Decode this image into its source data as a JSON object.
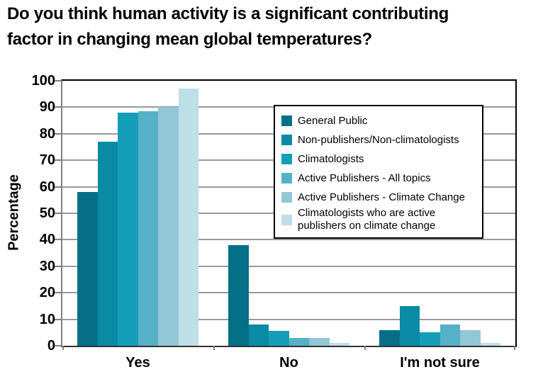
{
  "title": {
    "line1": "Do you think human activity is a significant contributing",
    "line2": "factor in changing mean global temperatures?"
  },
  "chart_data": {
    "type": "bar",
    "categories": [
      "Yes",
      "No",
      "I'm not sure"
    ],
    "series": [
      {
        "name": "General Public",
        "color": "#056F88",
        "values": [
          58,
          38,
          6
        ]
      },
      {
        "name": "Non-publishers/Non-climatologists",
        "color": "#0A8AA4",
        "values": [
          77,
          8,
          15
        ]
      },
      {
        "name": "Climatologists",
        "color": "#149EBA",
        "values": [
          88,
          5.5,
          5
        ]
      },
      {
        "name": "Active Publishers - All topics",
        "color": "#55B0C8",
        "values": [
          88.5,
          3,
          8
        ]
      },
      {
        "name": "Active Publishers - Climate Change",
        "color": "#92C7D8",
        "values": [
          90,
          3,
          6
        ]
      },
      {
        "name": "Climatologists who are active publishers on climate change",
        "color": "#BEDEE8",
        "values": [
          97,
          1,
          1
        ]
      }
    ],
    "ylabel": "Percentage",
    "xlabel": "",
    "ylim": [
      0,
      100
    ],
    "yticks": [
      0,
      10,
      20,
      30,
      40,
      50,
      60,
      70,
      80,
      90,
      100
    ],
    "grid": true,
    "legend_position": "upper-right-inside",
    "colors": {
      "gridline": "#999999",
      "axis_border": "#000000",
      "axis_left": "#808080",
      "axis_bottom": "#333333"
    }
  }
}
